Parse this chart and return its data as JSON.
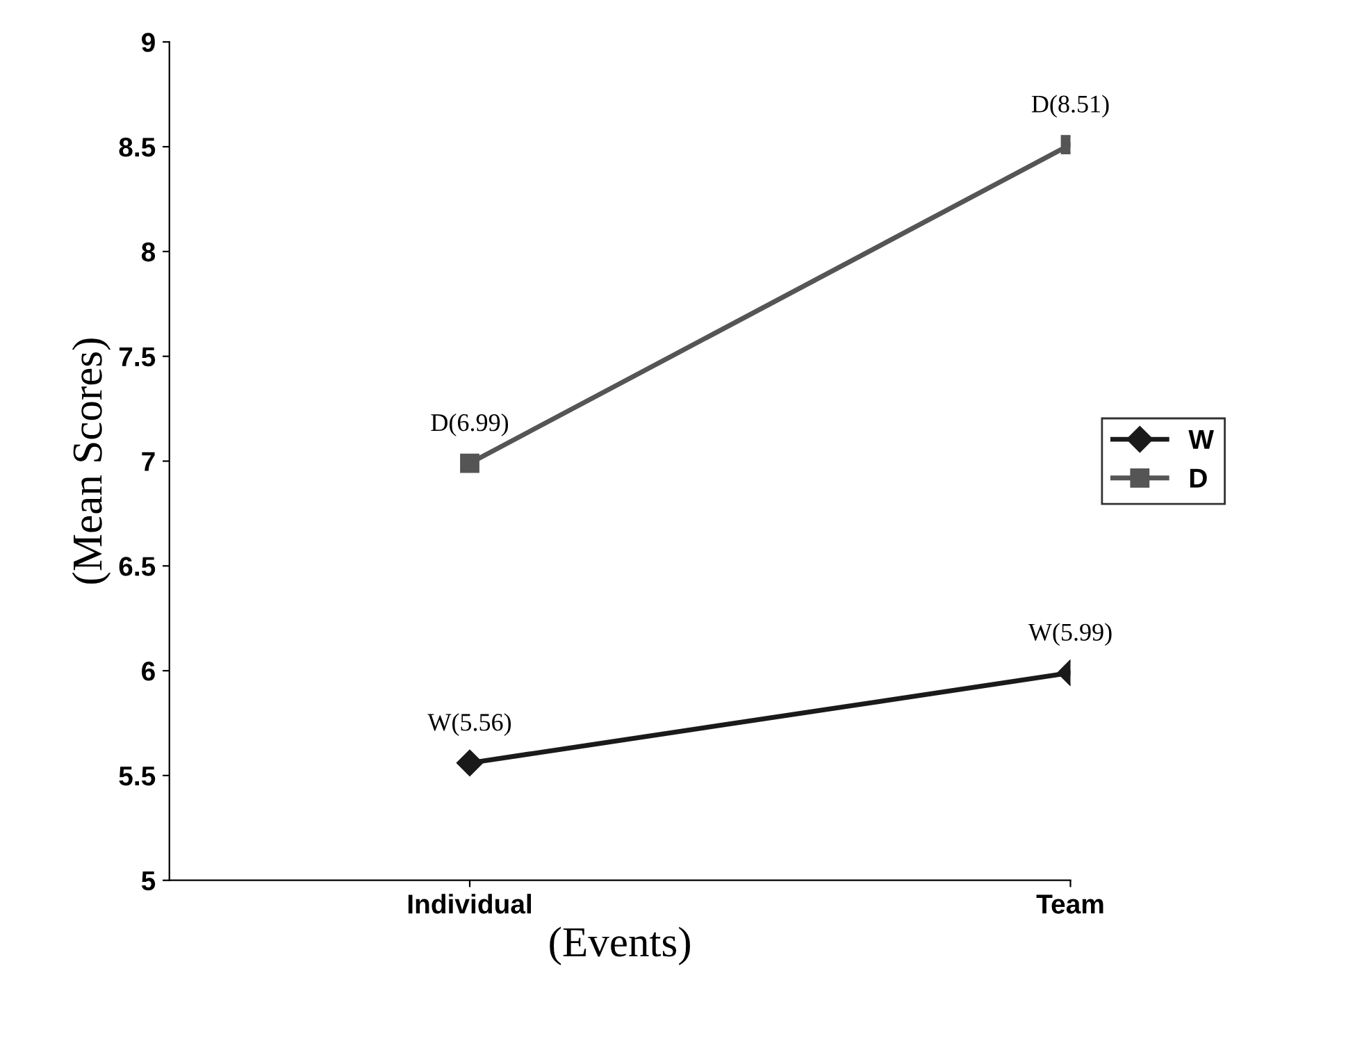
{
  "chart_data": {
    "type": "line",
    "xlabel": "(Events)",
    "ylabel": "(Mean Scores)",
    "categories": [
      "Individual",
      "Team"
    ],
    "series": [
      {
        "name": "W",
        "color": "#1a1a1a",
        "marker": "diamond",
        "values": [
          5.56,
          5.99
        ],
        "value_labels": [
          "W(5.56)",
          "W(5.99)"
        ]
      },
      {
        "name": "D",
        "color": "#555555",
        "marker": "square",
        "values": [
          6.99,
          8.51
        ],
        "value_labels": [
          "D(6.99)",
          "D(8.51)"
        ]
      }
    ],
    "ylim": [
      5,
      9
    ],
    "yticks": [
      5,
      5.5,
      6,
      6.5,
      7,
      7.5,
      8,
      8.5,
      9
    ],
    "grid": false,
    "legend": "right"
  }
}
